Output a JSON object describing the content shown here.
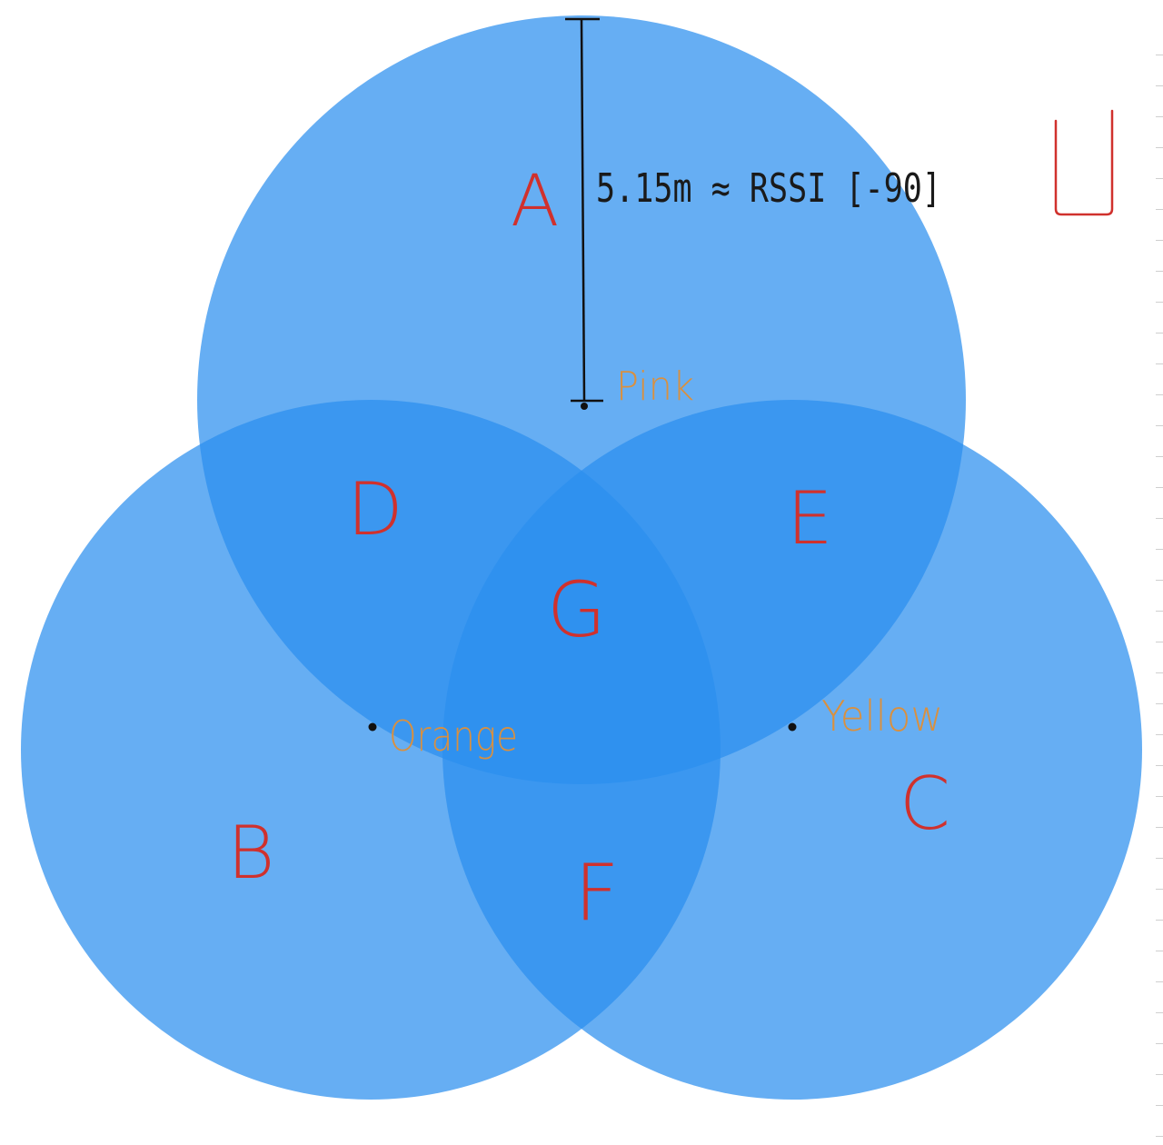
{
  "diagram": {
    "colors": {
      "circle_fill": "#2b8fef",
      "circle_fill_opacity": 0.72,
      "region_label": "#d0312d",
      "point_label": "#d9903f",
      "measure_line": "#111111",
      "background": "#ffffff"
    },
    "universe_label": "U",
    "region_labels": {
      "a": "A",
      "b": "B",
      "c": "C",
      "d": "D",
      "e": "E",
      "f": "F",
      "g": "G"
    },
    "points": {
      "pink": "Pink",
      "orange": "Orange",
      "yellow": "Yellow"
    },
    "measurement": {
      "text": "5.15m ≈ RSSI [-90]"
    }
  }
}
